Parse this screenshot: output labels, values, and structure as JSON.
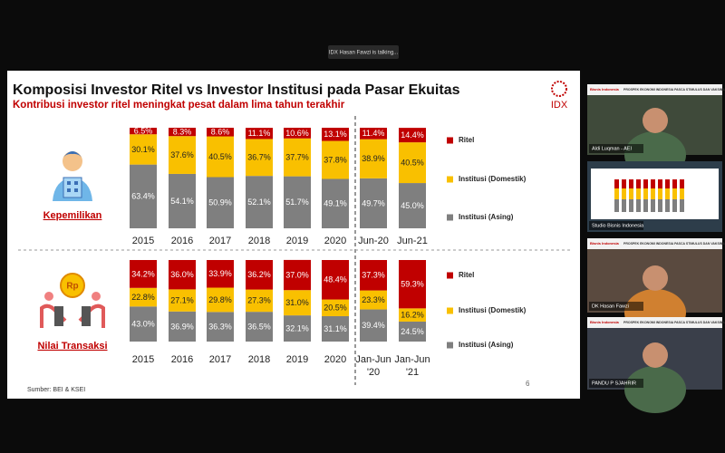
{
  "call": {
    "status": "IDX Hasan Fawzi is talking...",
    "banner": "PROSPEK EKONOMI INDONESIA PASCA STIMULUS DAN VAKSINASI",
    "brand": "Bisnis Indonesia",
    "tiles": [
      "Aldi Luqman - AEI",
      "Studio Bisnis Indonesia",
      "DK Hasan Fawzi",
      "PANDU P SJAHRIR"
    ]
  },
  "slide": {
    "title": "Komposisi Investor Ritel vs Investor Institusi pada Pasar Ekuitas",
    "subtitle": "Kontribusi investor ritel meningkat pesat dalam lima tahun terakhir",
    "logo": "IDX",
    "sections": [
      "Kepemilikan",
      "Nilai Transaksi"
    ],
    "source": "Sumber: BEI & KSEI",
    "page": "6"
  },
  "chart_data": [
    {
      "type": "stacked-bar",
      "stack": "percent",
      "ylim": [
        0,
        100
      ],
      "legend": "right",
      "categories": [
        "2015",
        "2016",
        "2017",
        "2018",
        "2019",
        "2020",
        "Jun-20",
        "Jun-21"
      ],
      "series": [
        {
          "name": "Ritel",
          "color": "#c00000",
          "values": [
            6.5,
            8.3,
            8.6,
            11.1,
            10.6,
            13.1,
            11.4,
            14.4
          ],
          "value_labels": [
            "6.5%",
            "8.3%",
            "8.6%",
            "11.1%",
            "10.6%",
            "13.1%",
            "11.4%",
            "14.4%"
          ]
        },
        {
          "name": "Institusi (Domestik)",
          "color": "#f9c000",
          "values": [
            30.1,
            37.6,
            40.5,
            36.7,
            37.7,
            37.8,
            38.9,
            40.5
          ],
          "value_labels": [
            "30.1%",
            "37.6%",
            "40.5%",
            "36.7%",
            "37.7%",
            "37.8%",
            "38.9%",
            "40.5%"
          ]
        },
        {
          "name": "Institusi (Asing)",
          "color": "#7f7f7f",
          "values": [
            63.4,
            54.1,
            50.9,
            52.1,
            51.7,
            49.1,
            49.7,
            45.0
          ],
          "value_labels": [
            "63.4%",
            "54.1%",
            "50.9%",
            "52.1%",
            "51.7%",
            "49.1%",
            "49.7%",
            "45.0%"
          ]
        }
      ]
    },
    {
      "type": "stacked-bar",
      "stack": "percent",
      "ylim": [
        0,
        100
      ],
      "legend": "right",
      "categories": [
        "2015",
        "2016",
        "2017",
        "2018",
        "2019",
        "2020",
        "Jan-Jun '20",
        "Jan-Jun '21"
      ],
      "series": [
        {
          "name": "Ritel",
          "color": "#c00000",
          "values": [
            34.2,
            36.0,
            33.9,
            36.2,
            37.0,
            48.4,
            37.3,
            59.3
          ],
          "value_labels": [
            "34.2%",
            "36.0%",
            "33.9%",
            "36.2%",
            "37.0%",
            "48.4%",
            "37.3%",
            "59.3%"
          ]
        },
        {
          "name": "Institusi (Domestik)",
          "color": "#f9c000",
          "values": [
            22.8,
            27.1,
            29.8,
            27.3,
            31.0,
            20.5,
            23.3,
            16.2
          ],
          "value_labels": [
            "22.8%",
            "27.1%",
            "29.8%",
            "27.3%",
            "31.0%",
            "20.5%",
            "23.3%",
            "16.2%"
          ]
        },
        {
          "name": "Institusi (Asing)",
          "color": "#7f7f7f",
          "values": [
            43.0,
            36.9,
            36.3,
            36.5,
            32.1,
            31.1,
            39.4,
            24.5
          ],
          "value_labels": [
            "43.0%",
            "36.9%",
            "36.3%",
            "36.5%",
            "32.1%",
            "31.1%",
            "39.4%",
            "24.5%"
          ]
        }
      ]
    }
  ]
}
